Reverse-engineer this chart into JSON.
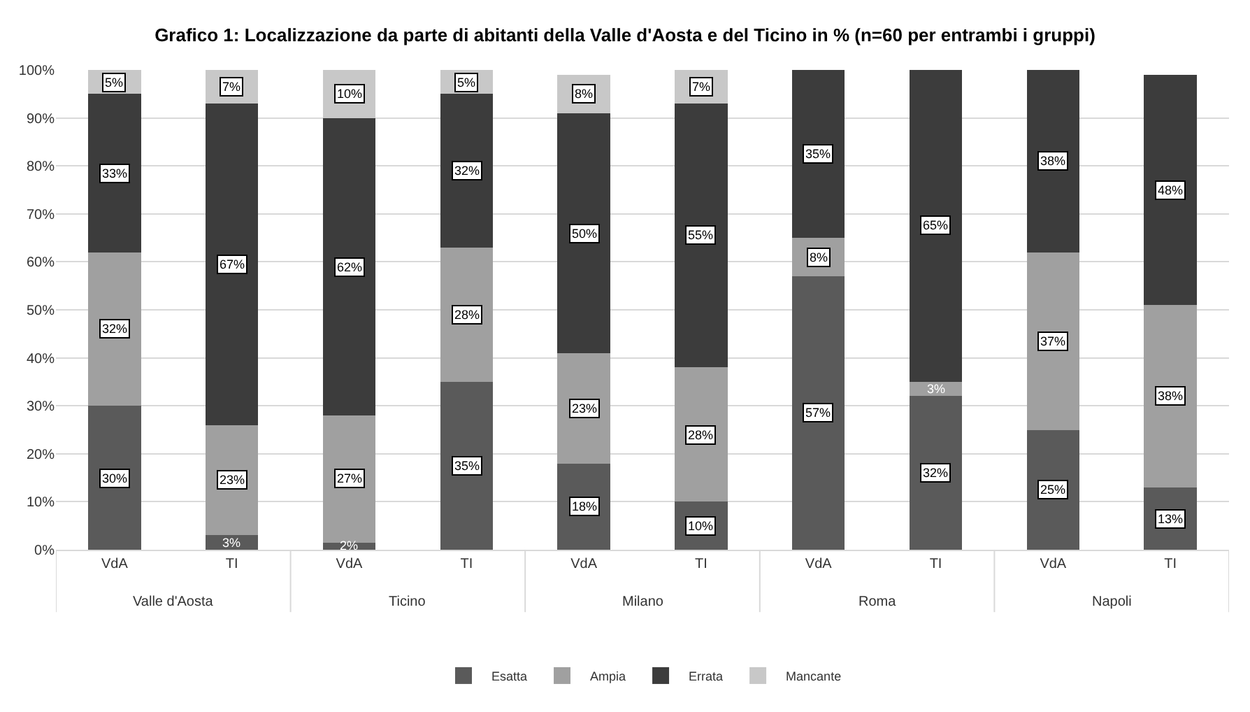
{
  "chart_data": {
    "type": "bar",
    "stacked": true,
    "title": "Grafico 1: Localizzazione da parte di abitanti della Valle d'Aosta e del Ticino in % (n=60 per entrambi i gruppi)",
    "categories": [
      "VdA",
      "TI",
      "VdA",
      "TI",
      "VdA",
      "TI",
      "VdA",
      "TI",
      "VdA",
      "TI"
    ],
    "series": [
      {
        "name": "Esatta",
        "color": "#5a5a5a",
        "values": [
          30,
          3,
          1.5,
          35,
          18,
          10,
          57,
          32,
          25,
          13
        ],
        "value_labels": [
          "30%",
          "3%",
          "2%",
          "35%",
          "18%",
          "10%",
          "57%",
          "32%",
          "25%",
          "13%"
        ]
      },
      {
        "name": "Ampia",
        "color": "#a0a0a0",
        "values": [
          32,
          23,
          26.5,
          28,
          23,
          28,
          8,
          3,
          37,
          38
        ],
        "value_labels": [
          "32%",
          "23%",
          "27%",
          "28%",
          "23%",
          "28%",
          "8%",
          "3%",
          "37%",
          "38%"
        ]
      },
      {
        "name": "Errata",
        "color": "#3c3c3c",
        "values": [
          33,
          67,
          62,
          32,
          50,
          55,
          35,
          65,
          38,
          48
        ],
        "value_labels": [
          "33%",
          "67%",
          "62%",
          "32%",
          "50%",
          "55%",
          "35%",
          "65%",
          "38%",
          "48%"
        ]
      },
      {
        "name": "Mancante",
        "color": "#c8c8c8",
        "values": [
          5,
          7,
          10,
          5,
          8,
          7,
          null,
          null,
          null,
          null
        ],
        "value_labels": [
          "5%",
          "7%",
          "10%",
          "5%",
          "8%",
          "7%",
          null,
          null,
          null,
          null
        ]
      }
    ],
    "annotations": [
      "Valle d'Aosta",
      "Ticino",
      "Milano",
      "Roma",
      "Napoli"
    ],
    "ylim": [
      0,
      100
    ],
    "yticks": [
      {
        "value": 0,
        "label": "0%"
      },
      {
        "value": 10,
        "label": "10%"
      },
      {
        "value": 20,
        "label": "20%"
      },
      {
        "value": 30,
        "label": "30%"
      },
      {
        "value": 40,
        "label": "40%"
      },
      {
        "value": 50,
        "label": "50%"
      },
      {
        "value": 60,
        "label": "60%"
      },
      {
        "value": 70,
        "label": "70%"
      },
      {
        "value": 80,
        "label": "80%"
      },
      {
        "value": 90,
        "label": "90%"
      },
      {
        "value": 100,
        "label": "100%"
      }
    ],
    "grid": "y",
    "legend": "bottom"
  }
}
